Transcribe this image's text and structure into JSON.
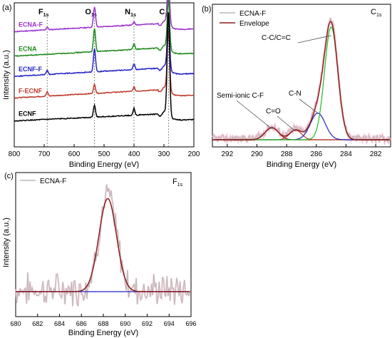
{
  "chart_data": [
    {
      "panel_label": "(a)",
      "type": "line",
      "xlabel": "Binding Energy (eV)",
      "ylabel": "Intensity (a.u.)",
      "xlim": [
        800,
        200
      ],
      "x_ticks": [
        800,
        700,
        600,
        500,
        400,
        300,
        200
      ],
      "peak_labels": [
        {
          "main": "F",
          "sub": "1s",
          "x": 690
        },
        {
          "main": "O",
          "sub": "1s",
          "x": 532
        },
        {
          "main": "N",
          "sub": "1s",
          "x": 400
        },
        {
          "main": "C",
          "sub": "1s",
          "x": 285
        }
      ],
      "series": [
        {
          "name": "ECNA-F",
          "color": "#9b30d0",
          "offset": 0.8,
          "rise": 0.07,
          "F": 0.02,
          "O": 0.14,
          "N": 0.02,
          "C": 0.3
        },
        {
          "name": "ECNA",
          "color": "#1e8a1e",
          "offset": 0.63,
          "rise": 0.07,
          "F": 0.0,
          "O": 0.16,
          "N": 0.04,
          "C": 0.34
        },
        {
          "name": "ECNF-F",
          "color": "#2323c8",
          "offset": 0.49,
          "rise": 0.07,
          "F": 0.03,
          "O": 0.16,
          "N": 0.04,
          "C": 0.36
        },
        {
          "name": "F-ECNF",
          "color": "#c0392b",
          "offset": 0.34,
          "rise": 0.07,
          "F": 0.03,
          "O": 0.06,
          "N": 0.03,
          "C": 0.42
        },
        {
          "name": "ECNF",
          "color": "#000000",
          "offset": 0.18,
          "rise": 0.06,
          "F": 0.0,
          "O": 0.08,
          "N": 0.05,
          "C": 0.72
        }
      ]
    },
    {
      "panel_label": "(b)",
      "type": "line",
      "corner_label": {
        "main": "C",
        "sub": "1s"
      },
      "xlabel": "Binding Energy (eV)",
      "ylabel": "",
      "xlim": [
        293,
        281
      ],
      "x_ticks": [
        292,
        290,
        288,
        286,
        284,
        282
      ],
      "legend": [
        "ECNA-F",
        "Envelope"
      ],
      "legend_colors": [
        "#b8b8b8",
        "#8b1a1a"
      ],
      "peaks": [
        {
          "name": "Semi-ionic C-F",
          "center": 289.0,
          "height": 0.1,
          "width": 0.45,
          "color": "#8b1a1a"
        },
        {
          "name": "C=O",
          "center": 287.4,
          "height": 0.08,
          "width": 0.4,
          "color": "#c0392b"
        },
        {
          "name": "C-N",
          "center": 285.9,
          "height": 0.22,
          "width": 0.5,
          "color": "#2323c8"
        },
        {
          "name": "C-C/C=C",
          "center": 285.0,
          "height": 0.93,
          "width": 0.45,
          "color": "#22bb22"
        }
      ]
    },
    {
      "panel_label": "(c)",
      "type": "line",
      "corner_label": {
        "main": "F",
        "sub": "1s"
      },
      "xlabel": "Binding Energy (eV)",
      "ylabel": "Intensity (a.u.)",
      "xlim": [
        680,
        696
      ],
      "x_ticks": [
        680,
        682,
        684,
        686,
        688,
        690,
        692,
        694,
        696
      ],
      "legend": [
        "ECNA-F"
      ],
      "legend_colors": [
        "#b8b8b8"
      ],
      "peak": {
        "center": 688.4,
        "height": 0.92,
        "width": 0.8,
        "color": "#8b1a1a"
      },
      "baseline_color": "#2323c8"
    }
  ]
}
